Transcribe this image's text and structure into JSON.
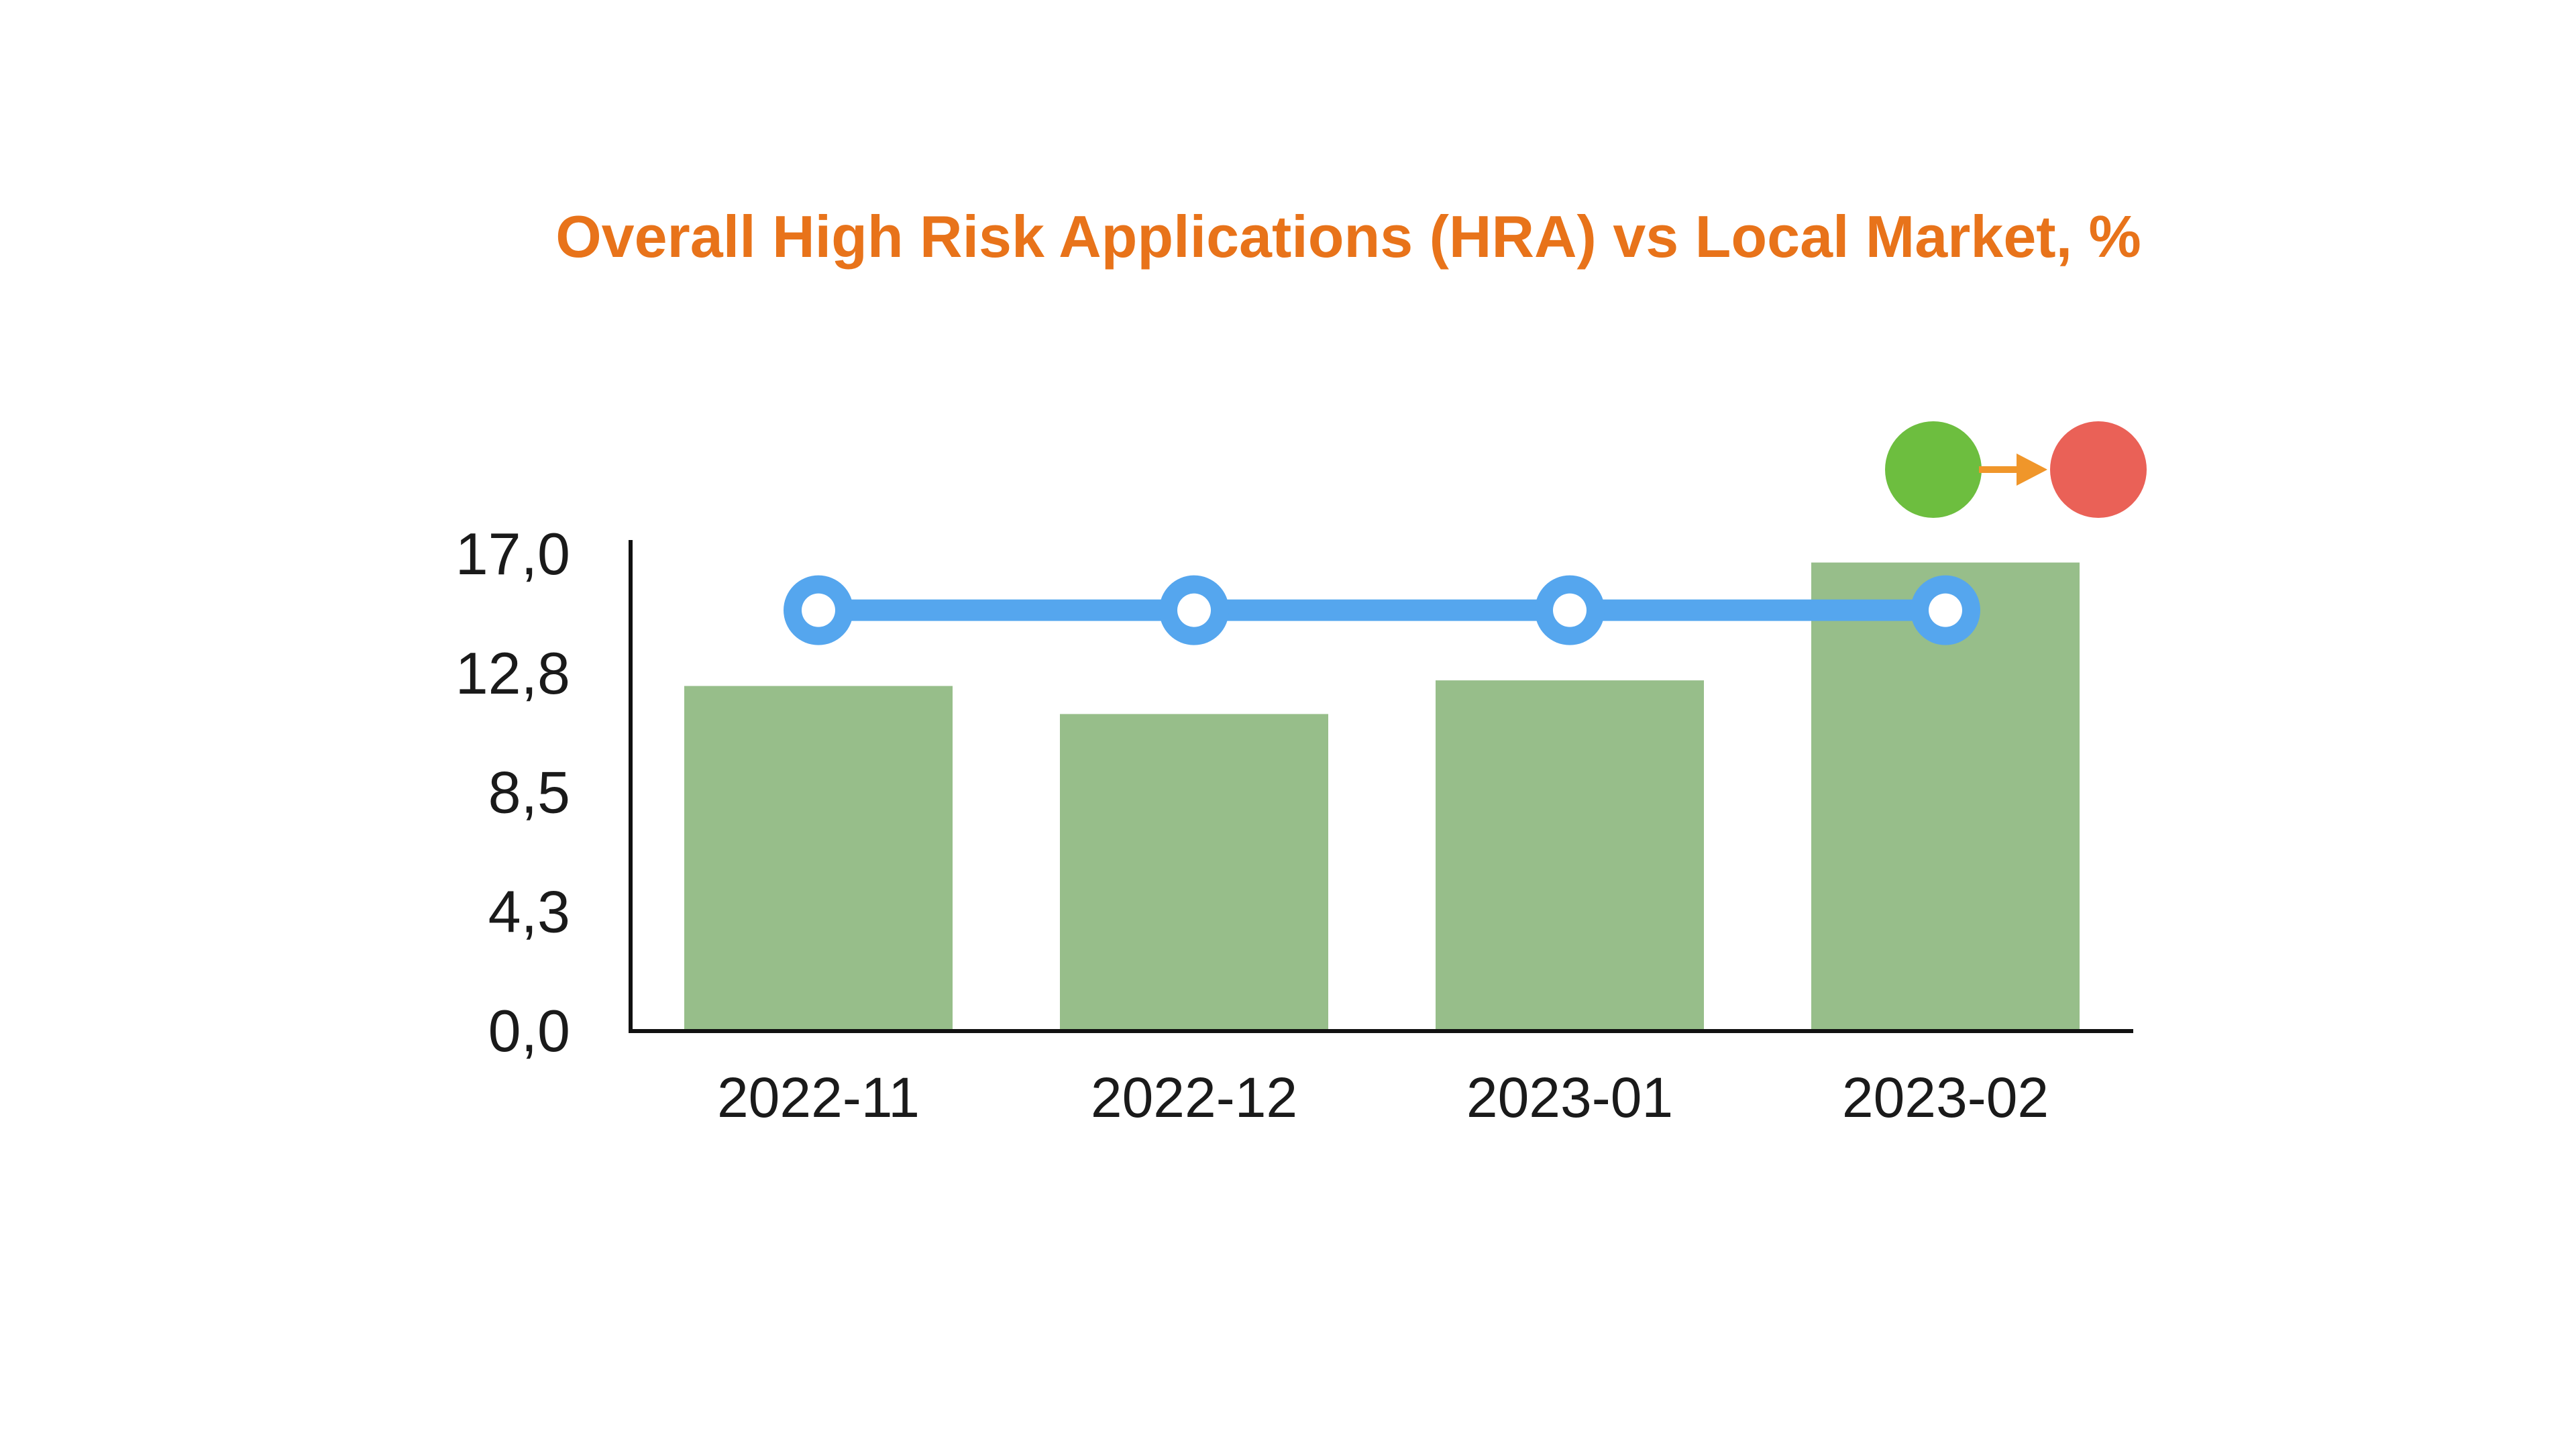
{
  "chart_data": {
    "type": "bar",
    "title": "Overall High Risk Applications (HRA) vs Local Market, %",
    "categories": [
      "2022-11",
      "2022-12",
      "2023-01",
      "2023-02"
    ],
    "series": [
      {
        "type": "bar",
        "values": [
          12.3,
          11.3,
          12.5,
          16.7
        ]
      },
      {
        "type": "line",
        "values": [
          15.0,
          15.0,
          15.0,
          15.0
        ]
      }
    ],
    "y_ticks": [
      "0,0",
      "4,3",
      "8,5",
      "12,8",
      "17,0"
    ],
    "ylim": [
      0,
      17
    ],
    "xlabel": "",
    "ylabel": "",
    "grid": false,
    "status_indicator": {
      "from": "green",
      "to": "red"
    }
  },
  "colors": {
    "title": "#E8731A",
    "bar": "#97BE8A",
    "line": "#55A6EE",
    "marker_inner": "#FFFFFF",
    "axis": "#111111",
    "tick_text": "#1A1A1A",
    "status_from": "#6DBE3F",
    "status_to": "#EA6157",
    "status_arrow": "#F0962A"
  }
}
